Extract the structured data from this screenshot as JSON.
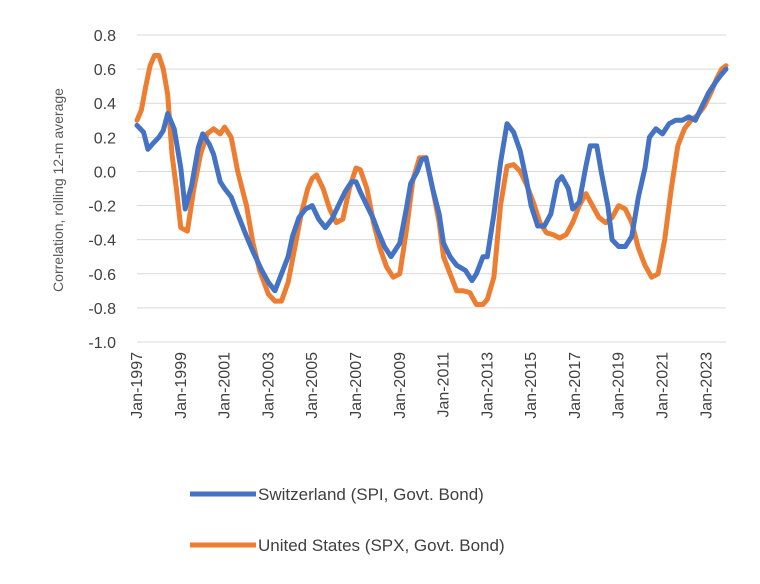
{
  "chart_data": {
    "type": "line",
    "ylabel": "Correlation, rolling 12-m average",
    "xlabel": "",
    "ylim": [
      -1.0,
      0.8
    ],
    "yticks": [
      0.8,
      0.6,
      0.4,
      0.2,
      0.0,
      -0.2,
      -0.4,
      -0.6,
      -0.8,
      -1.0
    ],
    "ytick_labels": [
      "0.8",
      "0.6",
      "0.4",
      "0.2",
      "0.0",
      "-0.2",
      "-0.4",
      "-0.6",
      "-0.8",
      "-1.0"
    ],
    "xlim": [
      1997.0,
      2023.9
    ],
    "xticks": [
      1997,
      1999,
      2001,
      2003,
      2005,
      2007,
      2009,
      2011,
      2013,
      2015,
      2017,
      2019,
      2021,
      2023
    ],
    "xtick_labels": [
      "Jan-1997",
      "Jan-1999",
      "Jan-2001",
      "Jan-2003",
      "Jan-2005",
      "Jan-2007",
      "Jan-2009",
      "Jan-2011",
      "Jan-2013",
      "Jan-2015",
      "Jan-2017",
      "Jan-2019",
      "Jan-2021",
      "Jan-2023"
    ],
    "grid": true,
    "legend_position": "bottom",
    "series": [
      {
        "name": "Switzerland (SPI, Govt. Bond)",
        "color": "#4472C4",
        "x": [
          1997.0,
          1997.3,
          1997.5,
          1997.7,
          1998.0,
          1998.2,
          1998.4,
          1998.7,
          1999.0,
          1999.2,
          1999.5,
          1999.8,
          2000.0,
          2000.3,
          2000.5,
          2000.8,
          2001.0,
          2001.3,
          2001.6,
          2002.0,
          2002.3,
          2002.7,
          2003.0,
          2003.3,
          2003.6,
          2003.9,
          2004.1,
          2004.4,
          2004.7,
          2005.0,
          2005.3,
          2005.6,
          2005.9,
          2006.2,
          2006.5,
          2006.8,
          2007.0,
          2007.2,
          2007.5,
          2007.8,
          2008.0,
          2008.3,
          2008.6,
          2009.0,
          2009.3,
          2009.5,
          2009.8,
          2010.0,
          2010.2,
          2010.5,
          2010.8,
          2011.0,
          2011.3,
          2011.6,
          2012.0,
          2012.3,
          2012.5,
          2012.8,
          2013.0,
          2013.3,
          2013.6,
          2013.9,
          2014.2,
          2014.5,
          2014.8,
          2015.0,
          2015.3,
          2015.6,
          2015.9,
          2016.2,
          2016.4,
          2016.7,
          2016.9,
          2017.2,
          2017.5,
          2017.7,
          2018.0,
          2018.2,
          2018.5,
          2018.7,
          2019.0,
          2019.3,
          2019.6,
          2019.9,
          2020.2,
          2020.4,
          2020.7,
          2021.0,
          2021.3,
          2021.6,
          2021.9,
          2022.2,
          2022.5,
          2022.8,
          2023.1,
          2023.4,
          2023.7,
          2023.9
        ],
        "values": [
          0.27,
          0.23,
          0.13,
          0.16,
          0.2,
          0.24,
          0.34,
          0.25,
          0.02,
          -0.22,
          -0.08,
          0.14,
          0.22,
          0.16,
          0.1,
          -0.06,
          -0.1,
          -0.15,
          -0.25,
          -0.38,
          -0.47,
          -0.58,
          -0.65,
          -0.7,
          -0.6,
          -0.5,
          -0.38,
          -0.27,
          -0.22,
          -0.2,
          -0.28,
          -0.33,
          -0.28,
          -0.2,
          -0.12,
          -0.06,
          -0.06,
          -0.12,
          -0.2,
          -0.28,
          -0.35,
          -0.44,
          -0.5,
          -0.42,
          -0.22,
          -0.07,
          0.0,
          0.07,
          0.08,
          -0.1,
          -0.25,
          -0.42,
          -0.5,
          -0.55,
          -0.58,
          -0.64,
          -0.6,
          -0.5,
          -0.5,
          -0.25,
          0.05,
          0.28,
          0.23,
          0.12,
          -0.06,
          -0.2,
          -0.32,
          -0.32,
          -0.25,
          -0.06,
          -0.03,
          -0.1,
          -0.22,
          -0.18,
          0.03,
          0.15,
          0.15,
          0.0,
          -0.2,
          -0.4,
          -0.44,
          -0.44,
          -0.38,
          -0.15,
          0.02,
          0.2,
          0.25,
          0.22,
          0.28,
          0.3,
          0.3,
          0.32,
          0.3,
          0.38,
          0.46,
          0.52,
          0.57,
          0.6
        ]
      },
      {
        "name": "United States (SPX, Govt. Bond)",
        "color": "#ED7D31",
        "x": [
          1997.0,
          1997.2,
          1997.4,
          1997.6,
          1997.8,
          1998.0,
          1998.2,
          1998.4,
          1998.6,
          1998.8,
          1999.0,
          1999.3,
          1999.6,
          1999.9,
          2000.2,
          2000.5,
          2000.8,
          2001.0,
          2001.3,
          2001.6,
          2002.0,
          2002.3,
          2002.6,
          2003.0,
          2003.3,
          2003.6,
          2003.9,
          2004.2,
          2004.5,
          2004.8,
          2005.0,
          2005.2,
          2005.5,
          2005.8,
          2006.1,
          2006.4,
          2006.7,
          2007.0,
          2007.2,
          2007.5,
          2007.8,
          2008.1,
          2008.4,
          2008.7,
          2009.0,
          2009.3,
          2009.6,
          2009.9,
          2010.2,
          2010.5,
          2010.8,
          2011.0,
          2011.3,
          2011.6,
          2011.9,
          2012.2,
          2012.5,
          2012.8,
          2013.0,
          2013.3,
          2013.6,
          2013.9,
          2014.2,
          2014.5,
          2014.8,
          2015.1,
          2015.4,
          2015.7,
          2016.0,
          2016.3,
          2016.6,
          2016.9,
          2017.2,
          2017.5,
          2017.8,
          2018.1,
          2018.4,
          2018.7,
          2019.0,
          2019.3,
          2019.6,
          2019.9,
          2020.2,
          2020.5,
          2020.8,
          2021.1,
          2021.4,
          2021.7,
          2022.0,
          2022.3,
          2022.6,
          2022.9,
          2023.2,
          2023.5,
          2023.7,
          2023.9
        ],
        "values": [
          0.3,
          0.36,
          0.5,
          0.62,
          0.68,
          0.68,
          0.6,
          0.45,
          0.1,
          -0.1,
          -0.33,
          -0.35,
          -0.1,
          0.1,
          0.22,
          0.25,
          0.22,
          0.26,
          0.2,
          0.0,
          -0.2,
          -0.42,
          -0.58,
          -0.72,
          -0.76,
          -0.76,
          -0.65,
          -0.45,
          -0.25,
          -0.1,
          -0.04,
          -0.02,
          -0.1,
          -0.22,
          -0.3,
          -0.28,
          -0.1,
          0.02,
          0.01,
          -0.1,
          -0.3,
          -0.45,
          -0.56,
          -0.62,
          -0.6,
          -0.35,
          -0.05,
          0.08,
          0.08,
          -0.1,
          -0.3,
          -0.5,
          -0.6,
          -0.7,
          -0.7,
          -0.71,
          -0.78,
          -0.78,
          -0.75,
          -0.62,
          -0.2,
          0.03,
          0.04,
          0.0,
          -0.08,
          -0.18,
          -0.3,
          -0.36,
          -0.37,
          -0.39,
          -0.37,
          -0.3,
          -0.2,
          -0.13,
          -0.2,
          -0.27,
          -0.3,
          -0.27,
          -0.2,
          -0.22,
          -0.3,
          -0.45,
          -0.55,
          -0.62,
          -0.6,
          -0.4,
          -0.1,
          0.15,
          0.25,
          0.3,
          0.33,
          0.38,
          0.46,
          0.55,
          0.6,
          0.62
        ]
      }
    ]
  }
}
